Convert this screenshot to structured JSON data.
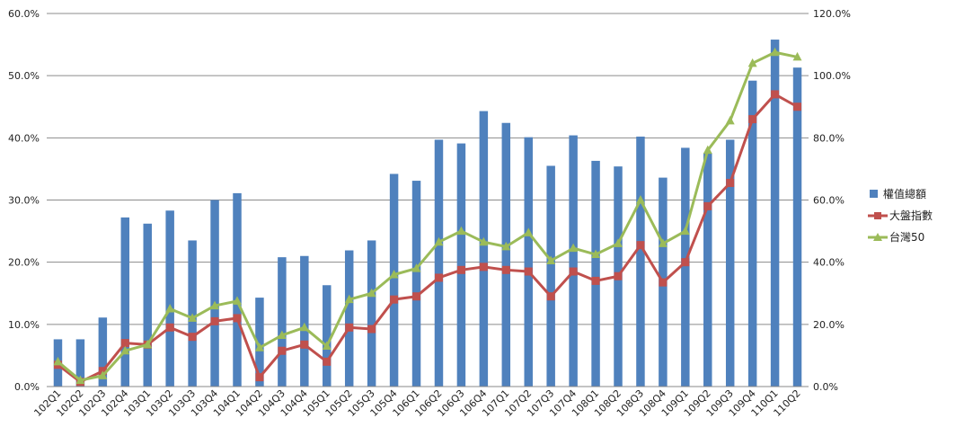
{
  "chart_data": {
    "type": "bar",
    "categories": [
      "102Q1",
      "102Q2",
      "102Q3",
      "102Q4",
      "103Q1",
      "103Q2",
      "103Q3",
      "103Q4",
      "104Q1",
      "104Q2",
      "104Q3",
      "104Q4",
      "105Q1",
      "105Q2",
      "105Q3",
      "105Q4",
      "106Q1",
      "106Q2",
      "106Q3",
      "106Q4",
      "107Q1",
      "107Q2",
      "107Q3",
      "107Q4",
      "108Q1",
      "108Q2",
      "108Q3",
      "108Q4",
      "109Q1",
      "109Q2",
      "109Q3",
      "109Q4",
      "110Q1",
      "110Q2"
    ],
    "y_left": {
      "min": 0,
      "max": 60,
      "step": 10,
      "tick_labels": [
        "0.0%",
        "10.0%",
        "20.0%",
        "30.0%",
        "40.0%",
        "50.0%",
        "60.0%"
      ]
    },
    "y_right": {
      "min": 0,
      "max": 120,
      "step": 20,
      "tick_labels": [
        "0.0%",
        "20.0%",
        "40.0%",
        "60.0%",
        "80.0%",
        "100.0%",
        "120.0%"
      ]
    },
    "grid": true,
    "legend_position": "right",
    "series": [
      {
        "name": "權值總額",
        "kind": "bar",
        "axis": "left",
        "color": "#4F81BD",
        "values": [
          7.6,
          7.6,
          11.1,
          27.2,
          26.2,
          28.3,
          23.5,
          30.0,
          31.1,
          14.3,
          20.8,
          21.0,
          16.3,
          21.9,
          23.5,
          34.2,
          33.1,
          39.7,
          39.1,
          44.3,
          42.4,
          40.1,
          35.5,
          40.4,
          36.3,
          35.4,
          40.2,
          33.6,
          38.4,
          37.6,
          39.7,
          49.2,
          55.8,
          51.3
        ]
      },
      {
        "name": "大盤指數",
        "kind": "line",
        "marker": "square",
        "axis": "right",
        "color": "#C0504D",
        "values": [
          7.0,
          1.5,
          5.0,
          14.0,
          13.5,
          19.0,
          16.0,
          21.0,
          22.0,
          3.0,
          11.5,
          13.5,
          8.0,
          19.0,
          18.5,
          28.0,
          29.0,
          35.0,
          37.5,
          38.5,
          37.5,
          37.0,
          29.0,
          37.0,
          34.0,
          35.5,
          45.5,
          33.5,
          40.0,
          58.0,
          65.5,
          86.0,
          94.0,
          90.0
        ]
      },
      {
        "name": "台灣50",
        "kind": "line",
        "marker": "triangle",
        "axis": "right",
        "color": "#9BBB59",
        "values": [
          8.0,
          2.0,
          3.5,
          11.5,
          13.5,
          25.0,
          22.0,
          26.0,
          27.5,
          12.5,
          16.5,
          19.0,
          13.0,
          28.0,
          30.0,
          36.0,
          38.0,
          46.5,
          50.0,
          46.5,
          45.0,
          49.5,
          40.5,
          44.5,
          42.5,
          46.0,
          60.0,
          46.0,
          50.0,
          76.0,
          85.5,
          104.0,
          107.5,
          106.0
        ]
      }
    ]
  }
}
